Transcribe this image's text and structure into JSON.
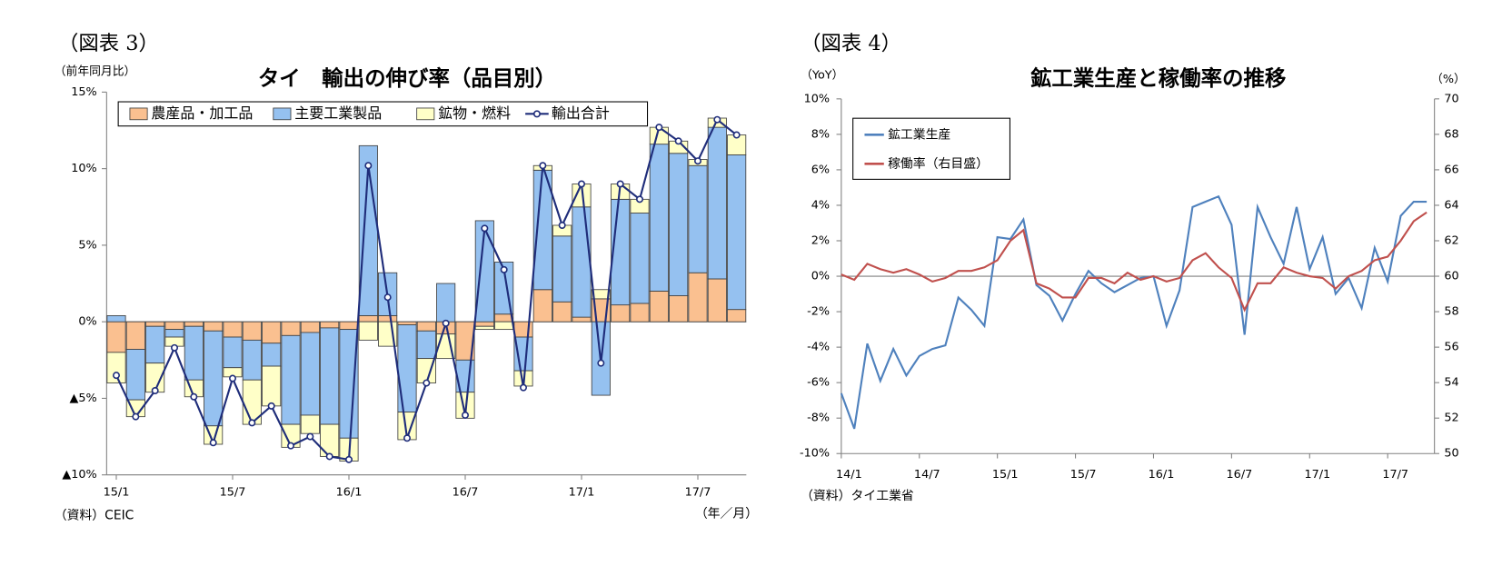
{
  "chart_data": [
    {
      "type": "bar",
      "heading": "（図表 3）",
      "title": "タイ　輸出の伸び率（品目別）",
      "y_label": "（前年同月比）",
      "x_label": "（年／月）",
      "source": "（資料）CEIC",
      "categories": [
        "15/1",
        null,
        null,
        null,
        null,
        null,
        "15/7",
        null,
        null,
        null,
        null,
        null,
        "16/1",
        null,
        null,
        null,
        null,
        null,
        "16/7",
        null,
        null,
        null,
        null,
        null,
        "17/1",
        null,
        null,
        null,
        null,
        null,
        "17/7",
        null,
        null
      ],
      "series": [
        {
          "name": "農産品・加工品",
          "color": "#fac090",
          "values": [
            -2.0,
            -1.8,
            -0.3,
            -0.5,
            -0.3,
            -0.6,
            -1.0,
            -1.2,
            -1.4,
            -0.9,
            -0.7,
            -0.4,
            -0.5,
            0.4,
            0.4,
            -0.2,
            -0.6,
            -0.8,
            -2.5,
            -0.3,
            0.5,
            -1.0,
            2.1,
            1.3,
            0.3,
            1.5,
            1.1,
            1.2,
            2.0,
            1.7,
            3.2,
            2.8,
            0.8
          ]
        },
        {
          "name": "主要工業製品",
          "color": "#95c1f0",
          "values": [
            0.4,
            -3.3,
            -2.4,
            -0.5,
            -3.5,
            -6.2,
            -2.0,
            -2.6,
            -1.5,
            -5.8,
            -5.4,
            -6.3,
            -7.1,
            11.1,
            2.8,
            -5.7,
            -1.8,
            2.5,
            -2.1,
            6.6,
            3.4,
            -2.2,
            7.8,
            4.3,
            7.2,
            -4.8,
            6.9,
            5.9,
            9.6,
            9.3,
            7.0,
            9.9,
            10.1
          ]
        },
        {
          "name": "鉱物・燃料",
          "color": "#ffffc8",
          "values": [
            -2.0,
            -1.1,
            -1.9,
            -0.6,
            -1.1,
            -1.2,
            -0.6,
            -2.9,
            -2.6,
            -1.5,
            -1.2,
            -2.1,
            -1.5,
            -1.2,
            -1.6,
            -1.8,
            -1.6,
            -1.6,
            -1.7,
            -0.2,
            -0.5,
            -1.0,
            0.3,
            0.7,
            1.5,
            0.6,
            1.0,
            0.9,
            1.1,
            0.8,
            0.4,
            0.6,
            1.3
          ]
        },
        {
          "name": "輸出合計",
          "color": "#1f2d7a",
          "type": "line",
          "values": [
            -3.5,
            -6.2,
            -4.5,
            -1.7,
            -4.9,
            -7.9,
            -3.7,
            -6.6,
            -5.5,
            -8.1,
            -7.5,
            -8.8,
            -9.0,
            10.2,
            1.6,
            -7.6,
            -4.0,
            -0.1,
            -6.1,
            6.1,
            3.4,
            -4.3,
            10.2,
            6.3,
            9.0,
            -2.7,
            9.0,
            8.0,
            12.7,
            11.8,
            10.5,
            13.2,
            12.2
          ]
        }
      ],
      "stacked": true,
      "ylim": [
        -10,
        15
      ],
      "yticks": [
        {
          "value": -10,
          "label": "▲10%"
        },
        {
          "value": -5,
          "label": "▲5%"
        },
        {
          "value": 0,
          "label": "0%"
        },
        {
          "value": 5,
          "label": "5%"
        },
        {
          "value": 10,
          "label": "10%"
        },
        {
          "value": 15,
          "label": "15%"
        }
      ],
      "legend": "top"
    },
    {
      "type": "line",
      "heading": "（図表 4）",
      "title": "鉱工業生産と稼働率の推移",
      "y_label": "（YoY）",
      "y2_label": "（%）",
      "source": "（資料）タイ工業省",
      "categories": [
        "14/1",
        null,
        null,
        null,
        null,
        null,
        "14/7",
        null,
        null,
        null,
        null,
        null,
        "15/1",
        null,
        null,
        null,
        null,
        null,
        "15/7",
        null,
        null,
        null,
        null,
        null,
        "16/1",
        null,
        null,
        null,
        null,
        null,
        "16/7",
        null,
        null,
        null,
        null,
        null,
        "17/1",
        null,
        null,
        null,
        null,
        null,
        "17/7",
        null,
        null,
        null
      ],
      "series": [
        {
          "name": "鉱工業生産",
          "color": "#4f81bd",
          "values": [
            -6.6,
            -8.6,
            -3.8,
            -5.9,
            -4.1,
            -5.6,
            -4.5,
            -4.1,
            -3.9,
            -1.2,
            -1.9,
            -2.8,
            2.2,
            2.1,
            3.2,
            -0.5,
            -1.1,
            -2.5,
            -1.0,
            0.3,
            -0.4,
            -0.9,
            -0.5,
            -0.1,
            0.0,
            -2.8,
            -0.8,
            3.9,
            4.2,
            4.5,
            2.9,
            -3.3,
            3.9,
            2.2,
            0.7,
            3.9,
            0.4,
            2.2,
            -1.0,
            -0.1,
            -1.8,
            1.6,
            -0.3,
            3.4,
            4.2,
            4.2
          ]
        },
        {
          "name": "稼働率（右目盛）",
          "color": "#c0504d",
          "axis": "y2",
          "values": [
            60.1,
            59.8,
            60.7,
            60.4,
            60.2,
            60.4,
            60.1,
            59.7,
            59.9,
            60.3,
            60.3,
            60.5,
            60.9,
            62.0,
            62.6,
            59.6,
            59.3,
            58.8,
            58.8,
            59.9,
            59.9,
            59.6,
            60.2,
            59.8,
            60.0,
            59.7,
            59.9,
            60.9,
            61.3,
            60.5,
            59.9,
            58.1,
            59.6,
            59.6,
            60.5,
            60.2,
            60.0,
            59.9,
            59.3,
            60.0,
            60.3,
            60.9,
            61.1,
            62.0,
            63.1,
            63.6
          ]
        }
      ],
      "ylim": [
        -10,
        10
      ],
      "yticks": [
        {
          "value": -10,
          "label": "-10%"
        },
        {
          "value": -8,
          "label": "-8%"
        },
        {
          "value": -6,
          "label": "-6%"
        },
        {
          "value": -4,
          "label": "-4%"
        },
        {
          "value": -2,
          "label": "-2%"
        },
        {
          "value": 0,
          "label": "0%"
        },
        {
          "value": 2,
          "label": "2%"
        },
        {
          "value": 4,
          "label": "4%"
        },
        {
          "value": 6,
          "label": "6%"
        },
        {
          "value": 8,
          "label": "8%"
        },
        {
          "value": 10,
          "label": "10%"
        }
      ],
      "y2lim": [
        50,
        70
      ],
      "y2ticks": [
        50,
        52,
        54,
        56,
        58,
        60,
        62,
        64,
        66,
        68,
        70
      ],
      "legend": "top-left"
    }
  ]
}
